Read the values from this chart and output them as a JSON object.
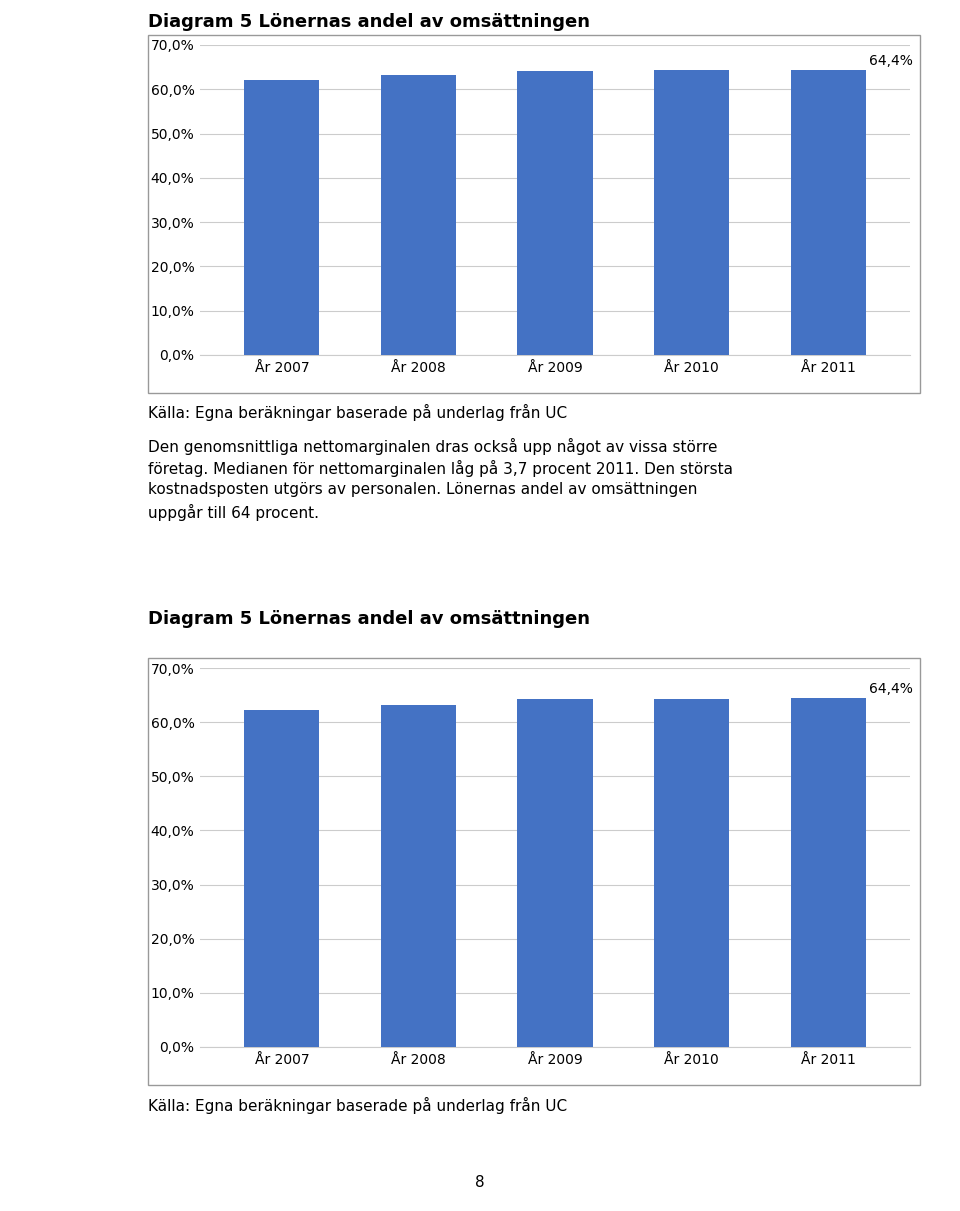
{
  "title": "Diagram 5 Lönernas andel av omsättningen",
  "categories": [
    "År 2007",
    "År 2008",
    "År 2009",
    "År 2010",
    "År 2011"
  ],
  "values": [
    0.622,
    0.632,
    0.642,
    0.643,
    0.644
  ],
  "bar_color": "#4472C4",
  "annotation_label": "64,4%",
  "annotation_bar_index": 4,
  "ylim": [
    0.0,
    0.7
  ],
  "yticks": [
    0.0,
    0.1,
    0.2,
    0.3,
    0.4,
    0.5,
    0.6,
    0.7
  ],
  "ytick_labels": [
    "0,0%",
    "10,0%",
    "20,0%",
    "30,0%",
    "40,0%",
    "50,0%",
    "60,0%",
    "70,0%"
  ],
  "source_text": "Källa: Egna beräkningar baserade på underlag från UC",
  "body_text_line1": "Den genomsnittliga nettomarginalen dras också upp något av vissa större",
  "body_text_line2": "företag. Medianen för nettomarginalen låg på 3,7 procent 2011. Den största",
  "body_text_line3": "kostnadsposten utgörs av personalen. Lönernas andel av omsättningen",
  "body_text_line4": "uppgår till 64 procent.",
  "page_number": "8",
  "border_color": "#999999",
  "grid_color": "#CCCCCC",
  "background_color": "#FFFFFF",
  "text_color": "#000000",
  "title_fontsize": 13,
  "axis_fontsize": 10,
  "annotation_fontsize": 10,
  "body_fontsize": 11,
  "source_fontsize": 11
}
